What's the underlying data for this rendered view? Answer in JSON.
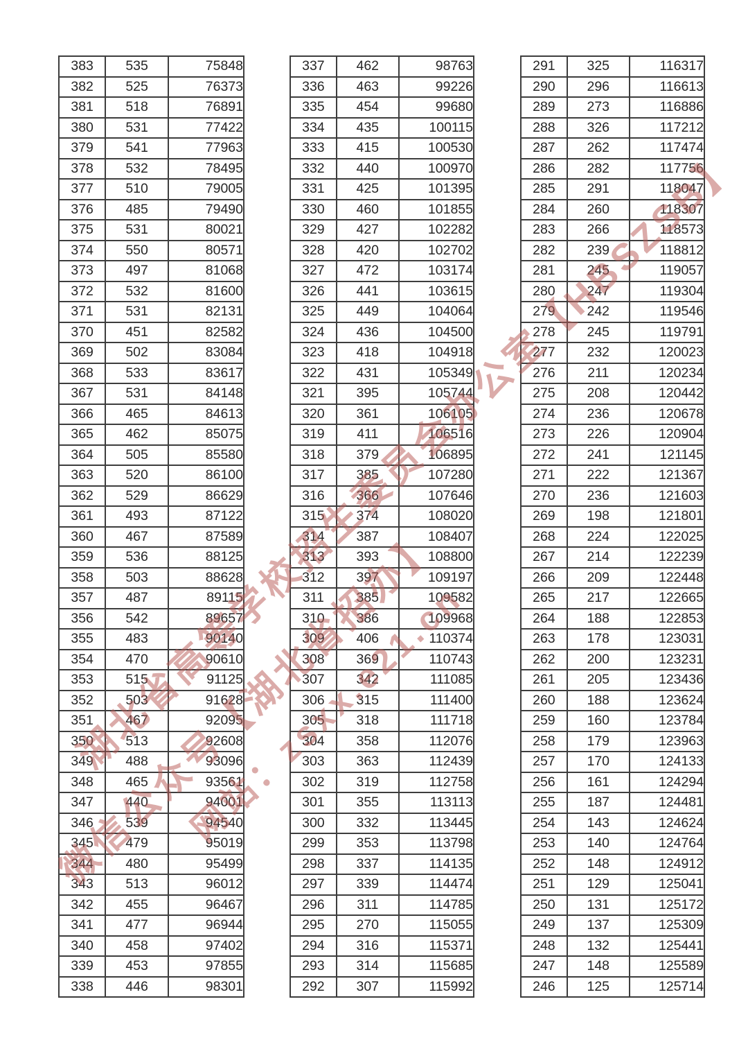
{
  "watermark": {
    "color": "#b85a56",
    "lines": [
      {
        "text": "湖北省高等学校招生委员会办公室【HBSZSB】"
      },
      {
        "text": "微信公众号【湖北省招办】"
      },
      {
        "text": "网站：zsxx.e21.cn"
      }
    ]
  },
  "tables": [
    {
      "rows": [
        [
          383,
          535,
          75848
        ],
        [
          382,
          525,
          76373
        ],
        [
          381,
          518,
          76891
        ],
        [
          380,
          531,
          77422
        ],
        [
          379,
          541,
          77963
        ],
        [
          378,
          532,
          78495
        ],
        [
          377,
          510,
          79005
        ],
        [
          376,
          485,
          79490
        ],
        [
          375,
          531,
          80021
        ],
        [
          374,
          550,
          80571
        ],
        [
          373,
          497,
          81068
        ],
        [
          372,
          532,
          81600
        ],
        [
          371,
          531,
          82131
        ],
        [
          370,
          451,
          82582
        ],
        [
          369,
          502,
          83084
        ],
        [
          368,
          533,
          83617
        ],
        [
          367,
          531,
          84148
        ],
        [
          366,
          465,
          84613
        ],
        [
          365,
          462,
          85075
        ],
        [
          364,
          505,
          85580
        ],
        [
          363,
          520,
          86100
        ],
        [
          362,
          529,
          86629
        ],
        [
          361,
          493,
          87122
        ],
        [
          360,
          467,
          87589
        ],
        [
          359,
          536,
          88125
        ],
        [
          358,
          503,
          88628
        ],
        [
          357,
          487,
          89115
        ],
        [
          356,
          542,
          89657
        ],
        [
          355,
          483,
          90140
        ],
        [
          354,
          470,
          90610
        ],
        [
          353,
          515,
          91125
        ],
        [
          352,
          503,
          91628
        ],
        [
          351,
          467,
          92095
        ],
        [
          350,
          513,
          92608
        ],
        [
          349,
          488,
          93096
        ],
        [
          348,
          465,
          93561
        ],
        [
          347,
          440,
          94001
        ],
        [
          346,
          539,
          94540
        ],
        [
          345,
          479,
          95019
        ],
        [
          344,
          480,
          95499
        ],
        [
          343,
          513,
          96012
        ],
        [
          342,
          455,
          96467
        ],
        [
          341,
          477,
          96944
        ],
        [
          340,
          458,
          97402
        ],
        [
          339,
          453,
          97855
        ],
        [
          338,
          446,
          98301
        ]
      ]
    },
    {
      "rows": [
        [
          337,
          462,
          98763
        ],
        [
          336,
          463,
          99226
        ],
        [
          335,
          454,
          99680
        ],
        [
          334,
          435,
          100115
        ],
        [
          333,
          415,
          100530
        ],
        [
          332,
          440,
          100970
        ],
        [
          331,
          425,
          101395
        ],
        [
          330,
          460,
          101855
        ],
        [
          329,
          427,
          102282
        ],
        [
          328,
          420,
          102702
        ],
        [
          327,
          472,
          103174
        ],
        [
          326,
          441,
          103615
        ],
        [
          325,
          449,
          104064
        ],
        [
          324,
          436,
          104500
        ],
        [
          323,
          418,
          104918
        ],
        [
          322,
          431,
          105349
        ],
        [
          321,
          395,
          105744
        ],
        [
          320,
          361,
          106105
        ],
        [
          319,
          411,
          106516
        ],
        [
          318,
          379,
          106895
        ],
        [
          317,
          385,
          107280
        ],
        [
          316,
          366,
          107646
        ],
        [
          315,
          374,
          108020
        ],
        [
          314,
          387,
          108407
        ],
        [
          313,
          393,
          108800
        ],
        [
          312,
          397,
          109197
        ],
        [
          311,
          385,
          109582
        ],
        [
          310,
          386,
          109968
        ],
        [
          309,
          406,
          110374
        ],
        [
          308,
          369,
          110743
        ],
        [
          307,
          342,
          111085
        ],
        [
          306,
          315,
          111400
        ],
        [
          305,
          318,
          111718
        ],
        [
          304,
          358,
          112076
        ],
        [
          303,
          363,
          112439
        ],
        [
          302,
          319,
          112758
        ],
        [
          301,
          355,
          113113
        ],
        [
          300,
          332,
          113445
        ],
        [
          299,
          353,
          113798
        ],
        [
          298,
          337,
          114135
        ],
        [
          297,
          339,
          114474
        ],
        [
          296,
          311,
          114785
        ],
        [
          295,
          270,
          115055
        ],
        [
          294,
          316,
          115371
        ],
        [
          293,
          314,
          115685
        ],
        [
          292,
          307,
          115992
        ]
      ]
    },
    {
      "rows": [
        [
          291,
          325,
          116317
        ],
        [
          290,
          296,
          116613
        ],
        [
          289,
          273,
          116886
        ],
        [
          288,
          326,
          117212
        ],
        [
          287,
          262,
          117474
        ],
        [
          286,
          282,
          117756
        ],
        [
          285,
          291,
          118047
        ],
        [
          284,
          260,
          118307
        ],
        [
          283,
          266,
          118573
        ],
        [
          282,
          239,
          118812
        ],
        [
          281,
          245,
          119057
        ],
        [
          280,
          247,
          119304
        ],
        [
          279,
          242,
          119546
        ],
        [
          278,
          245,
          119791
        ],
        [
          277,
          232,
          120023
        ],
        [
          276,
          211,
          120234
        ],
        [
          275,
          208,
          120442
        ],
        [
          274,
          236,
          120678
        ],
        [
          273,
          226,
          120904
        ],
        [
          272,
          241,
          121145
        ],
        [
          271,
          222,
          121367
        ],
        [
          270,
          236,
          121603
        ],
        [
          269,
          198,
          121801
        ],
        [
          268,
          224,
          122025
        ],
        [
          267,
          214,
          122239
        ],
        [
          266,
          209,
          122448
        ],
        [
          265,
          217,
          122665
        ],
        [
          264,
          188,
          122853
        ],
        [
          263,
          178,
          123031
        ],
        [
          262,
          200,
          123231
        ],
        [
          261,
          205,
          123436
        ],
        [
          260,
          188,
          123624
        ],
        [
          259,
          160,
          123784
        ],
        [
          258,
          179,
          123963
        ],
        [
          257,
          170,
          124133
        ],
        [
          256,
          161,
          124294
        ],
        [
          255,
          187,
          124481
        ],
        [
          254,
          143,
          124624
        ],
        [
          253,
          140,
          124764
        ],
        [
          252,
          148,
          124912
        ],
        [
          251,
          129,
          125041
        ],
        [
          250,
          131,
          125172
        ],
        [
          249,
          137,
          125309
        ],
        [
          248,
          132,
          125441
        ],
        [
          247,
          148,
          125589
        ],
        [
          246,
          125,
          125714
        ]
      ]
    }
  ]
}
